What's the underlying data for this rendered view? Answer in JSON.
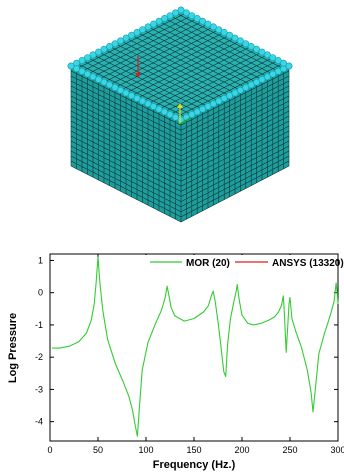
{
  "colors": {
    "mesh_face": "#1f9d9d",
    "mesh_lines": "#062e2e",
    "mesh_top": "#2bb0b0",
    "edge_nodes": "#39d6e6",
    "mor_line": "#33cc33",
    "ansys_line": "#dd2222",
    "axis_arrow_red": "#cc2222",
    "axis_arrow_yellow": "#dddd22",
    "axis_arrow_green": "#22aa22"
  },
  "chart_data": {
    "type": "line",
    "xlabel": "Frequency (Hz.)",
    "ylabel": "Log Pressure",
    "xlim": [
      0,
      300
    ],
    "ylim": [
      -4.6,
      1.2
    ],
    "xticks": [
      0,
      50,
      100,
      150,
      200,
      250,
      300
    ],
    "yticks": [
      1,
      0,
      -1,
      -2,
      -3,
      -4
    ],
    "legend": {
      "placement": "top-right",
      "entries": [
        "MOR (20)",
        "ANSYS (13320)"
      ]
    },
    "series": [
      {
        "name": "MOR (20)",
        "color": "#33cc33",
        "x": [
          2,
          10,
          20,
          30,
          38,
          43,
          46,
          48,
          50,
          52,
          55,
          60,
          68,
          76,
          82,
          86,
          89,
          91,
          93,
          96,
          102,
          110,
          116,
          120,
          122,
          124,
          126,
          130,
          140,
          150,
          160,
          165,
          168,
          170,
          172,
          175,
          178,
          181,
          183,
          185,
          188,
          191,
          194,
          195,
          197,
          200,
          206,
          212,
          220,
          228,
          234,
          238,
          241,
          243,
          244,
          246,
          248,
          249,
          250,
          252,
          256,
          262,
          268,
          272,
          274,
          276,
          280,
          286,
          292,
          296,
          298,
          299,
          300
        ],
        "y": [
          -1.72,
          -1.72,
          -1.66,
          -1.52,
          -1.25,
          -0.85,
          -0.35,
          0.3,
          1.1,
          0.3,
          -0.55,
          -1.45,
          -2.2,
          -2.75,
          -3.2,
          -3.65,
          -4.15,
          -4.45,
          -3.6,
          -2.4,
          -1.55,
          -0.95,
          -0.55,
          -0.15,
          0.2,
          -0.1,
          -0.45,
          -0.72,
          -0.88,
          -0.8,
          -0.6,
          -0.4,
          -0.1,
          0.05,
          -0.25,
          -0.9,
          -1.65,
          -2.45,
          -2.6,
          -1.6,
          -0.8,
          -0.35,
          0.05,
          0.25,
          -0.2,
          -0.7,
          -0.95,
          -1.0,
          -0.95,
          -0.85,
          -0.75,
          -0.6,
          -0.4,
          -0.1,
          -0.55,
          -1.85,
          -0.85,
          -0.35,
          -0.15,
          -0.8,
          -1.2,
          -1.7,
          -2.4,
          -3.1,
          -3.7,
          -3.1,
          -1.9,
          -1.25,
          -0.7,
          -0.25,
          0.3,
          0.05,
          -0.35
        ]
      },
      {
        "name": "ANSYS (13320)",
        "color": "#dd2222",
        "x": [],
        "y": []
      }
    ]
  }
}
